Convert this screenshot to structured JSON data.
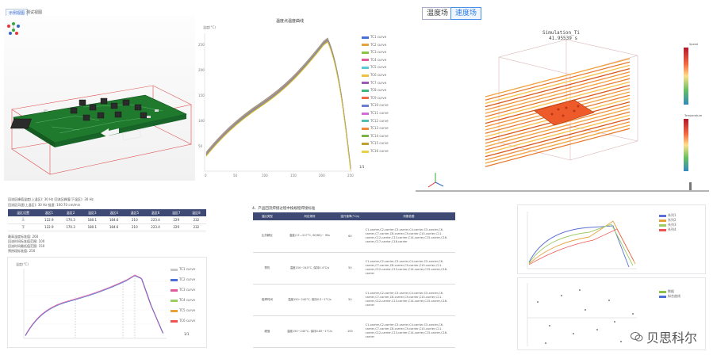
{
  "top_left": {
    "tabs": [
      "示例视图",
      "测试视图"
    ]
  },
  "temp_chart": {
    "title": "温度点温度曲线",
    "ylabel": "温度(°C)",
    "yticks": [
      "250",
      "200",
      "150",
      "100",
      "50"
    ],
    "xticks": [
      "0",
      "50",
      "100",
      "150",
      "200",
      "250"
    ],
    "legend": [
      "TC1 curve",
      "TC2 curve",
      "TC3 curve",
      "TC4 curve",
      "TC5 curve",
      "TC6 curve",
      "TC7 curve",
      "TC8 curve",
      "TC9 curve",
      "TC10 curve",
      "TC11 curve",
      "TC12 curve",
      "TC13 curve",
      "TC14 curve",
      "TC15 curve",
      "TC16 curve"
    ],
    "legend_colors": [
      "#4b6fd6",
      "#e6a23c",
      "#8bc34a",
      "#e05a9c",
      "#5ac8d8",
      "#f0c040",
      "#9b59b6",
      "#3fb57e",
      "#ef6a4a",
      "#6a7fd0",
      "#d36bd8",
      "#4ec0b0",
      "#f08a3c",
      "#7cb342",
      "#c0a030",
      "#e8d04a"
    ],
    "pager": "1/1"
  },
  "sim": {
    "tabs": [
      "温度场",
      "速度场"
    ],
    "active_tab": "速度场",
    "label": "Simulation_Ti",
    "time": "41.95539 s",
    "legend1_title": "Speed",
    "legend2_title": "Temperature"
  },
  "stats": {
    "lines": [
      "回流区峰值温度(上温区):  30 Hz    回流区峰值(下温区):  30 Hz",
      "回流区风速(上温区):  30 Hz    链速:  100.70 cm/min"
    ],
    "headers": [
      "温区设置",
      "温区1",
      "温区2",
      "温区3",
      "温区4",
      "温区5",
      "温区6",
      "温区7",
      "温区8"
    ],
    "rows": [
      [
        "上",
        "122.9",
        "170.3",
        "180.1",
        "184.6",
        "210",
        "223.4",
        "229",
        "232"
      ],
      [
        "下",
        "122.9",
        "170.3",
        "180.1",
        "184.6",
        "210",
        "223.4",
        "229",
        "232"
      ]
    ],
    "notes": [
      "最高温度标准值: 260",
      "回流时间标准值范围: 100",
      "回流时间最低值范围: 150",
      "预热段标准值: 250"
    ]
  },
  "profile": {
    "ylabel": "温度(°C)",
    "legend": [
      "TC1 curve",
      "TC2 curve",
      "TC3 curve",
      "TC4 curve",
      "TC5 curve",
      "TC6 curve"
    ],
    "pager": "1/1"
  },
  "standard": {
    "heading": "4、产品回流焊接过程中按规程焊接标准",
    "headers": [
      "温区类型",
      "判定规则",
      "温升速率(°C/s)",
      "判断依据"
    ],
    "rows": [
      [
        "比热解区",
        "温度(17—217°C, 60/60)~ 90s",
        "60",
        "C1-carrier,C2-carrier,C3-carrier,C4-carrier,C5-carrier,C6-carrier,C7-carrier,C8-carrier,C9-carrier,C10-carrier,C11-carrier,C12-carrier,C13-carrier,C14-carrier,C15-carrier,C16-carrier,C17-carrier,C18-carrier"
      ],
      [
        "预热",
        "温度150~240°C,  保持0-4°C/s",
        "50",
        "C1-carrier,C2-carrier,C3-carrier,C4-carrier,C5-carrier,C6-carrier,C7-carrier,C8-carrier,C9-carrier,C10-carrier,C11-carrier,C12-carrier,C13-carrier,C14-carrier,C15-carrier,C16-carrier"
      ],
      [
        "熔焊时间",
        "温度150~240°C,  保持0.5~1°C/s",
        "50",
        "C1-carrier,C2-carrier,C3-carrier,C4-carrier,C5-carrier,C6-carrier,C7-carrier,C8-carrier,C9-carrier,C10-carrier,C11-carrier,C12-carrier,C13-carrier,C14-carrier,C15-carrier,C16-carrier"
      ],
      [
        "峰值",
        "温度150~240°C,  保持0.85~1°C/s",
        "100",
        "C1-carrier,C2-carrier,C3-carrier,C4-carrier,C5-carrier,C6-carrier,C7-carrier,C8-carrier,C9-carrier,C10-carrier,C11-carrier,C12-carrier,C13-carrier,C14-carrier,C15-carrier,C16-carrier"
      ]
    ]
  },
  "mini1": {
    "legend": [
      "系列1",
      "系列2",
      "系列3",
      "系列4"
    ],
    "colors": [
      "#5b6fd6",
      "#e6a23c",
      "#9ccc65",
      "#ef5350"
    ]
  },
  "mini2": {
    "legend": [
      "数据",
      "拟合曲线"
    ],
    "colors": [
      "#8bc34a",
      "#4b6fd6"
    ]
  },
  "watermark": "贝思科尔"
}
